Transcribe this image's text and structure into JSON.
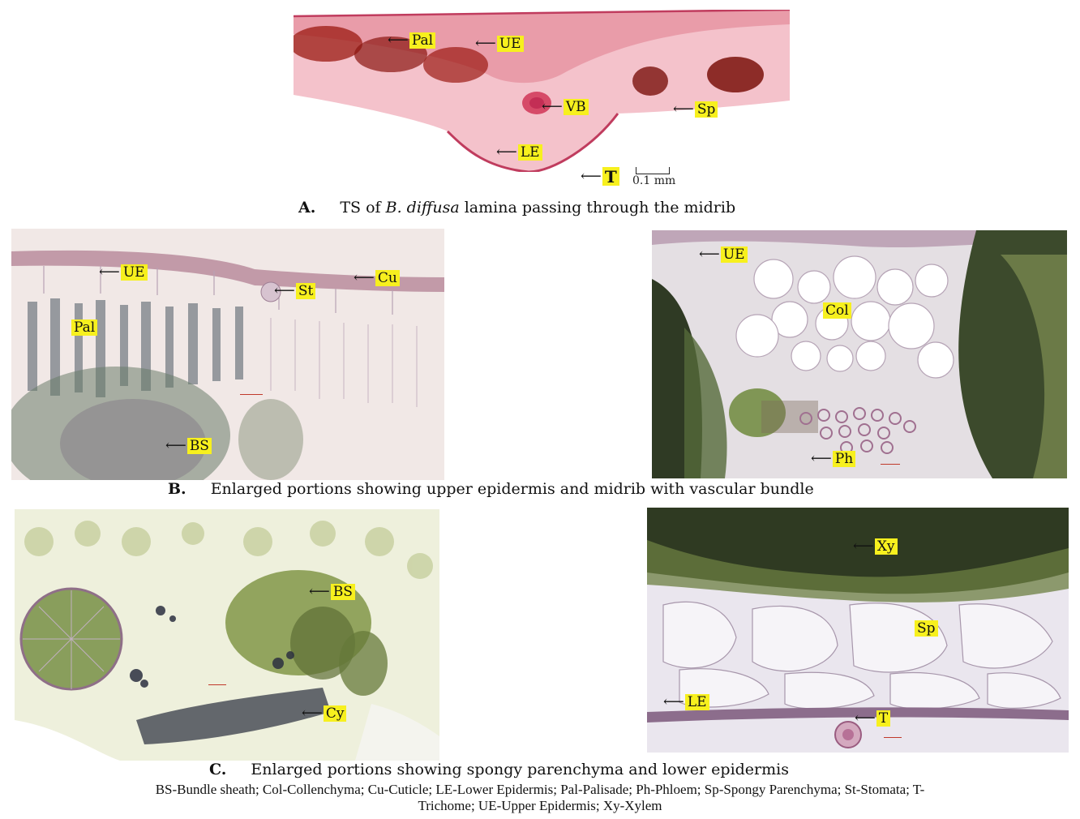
{
  "panelA": {
    "labels": [
      "Pal",
      "UE",
      "VB",
      "Sp",
      "LE",
      "T"
    ],
    "scale": "0.1 mm",
    "caption_letter": "A.",
    "caption_pre": "TS of ",
    "caption_italic": "B. diffusa",
    "caption_post": " lamina passing through the midrib"
  },
  "panelB": {
    "left_labels": [
      "UE",
      "Cu",
      "St",
      "Pal",
      "BS"
    ],
    "right_labels": [
      "UE",
      "Col",
      "Ph"
    ],
    "caption_letter": "B.",
    "caption_text": "Enlarged portions showing upper epidermis and midrib with vascular bundle"
  },
  "panelC": {
    "left_labels": [
      "BS",
      "Cy"
    ],
    "right_labels": [
      "Xy",
      "Sp",
      "LE",
      "T"
    ],
    "caption_letter": "C.",
    "caption_text": "Enlarged portions showing spongy parenchyma and lower epidermis"
  },
  "footer": {
    "line1": "BS-Bundle sheath; Col-Collenchyma; Cu-Cuticle; LE-Lower Epidermis; Pal-Palisade; Ph-Phloem; Sp-Spongy Parenchyma; St-Stomata; T-",
    "line2": "Trichome; UE-Upper Epidermis; Xy-Xylem"
  },
  "colors": {
    "label_bg": "#f7f01e",
    "stain_pink": "#e48a98",
    "stain_red": "#9b1a12",
    "tissue_green": "#8aa24a"
  }
}
